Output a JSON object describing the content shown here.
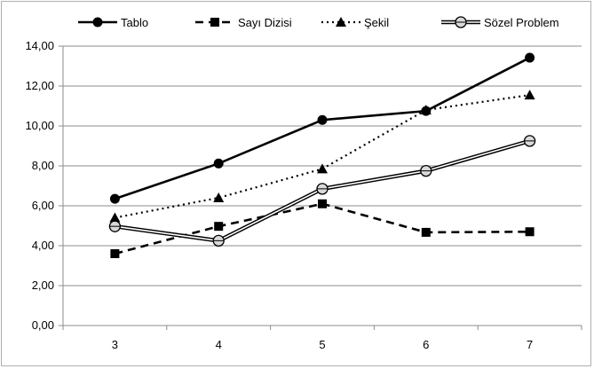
{
  "chart_data": {
    "type": "line",
    "title": "",
    "xlabel": "",
    "ylabel": "",
    "categories": [
      "3",
      "4",
      "5",
      "6",
      "7"
    ],
    "ylim": [
      0,
      14
    ],
    "yticks": [
      "0,00",
      "2,00",
      "4,00",
      "6,00",
      "8,00",
      "10,00",
      "12,00",
      "14,00"
    ],
    "grid": true,
    "legend_position": "top",
    "series": [
      {
        "name": "Tablo",
        "values": [
          6.35,
          8.12,
          10.3,
          10.75,
          13.42
        ],
        "style": "solid",
        "marker": "circle",
        "color": "#000000"
      },
      {
        "name": "Sayı Dizisi",
        "values": [
          3.6,
          4.97,
          6.1,
          4.67,
          4.7
        ],
        "style": "dashed",
        "marker": "square",
        "color": "#000000"
      },
      {
        "name": "Şekil",
        "values": [
          5.4,
          6.4,
          7.85,
          10.8,
          11.55
        ],
        "style": "dotted",
        "marker": "triangle",
        "color": "#000000"
      },
      {
        "name": "Sözel Problem",
        "values": [
          4.97,
          4.25,
          6.85,
          7.75,
          9.25
        ],
        "style": "double",
        "marker": "circle-open",
        "color": "#000000"
      }
    ]
  }
}
